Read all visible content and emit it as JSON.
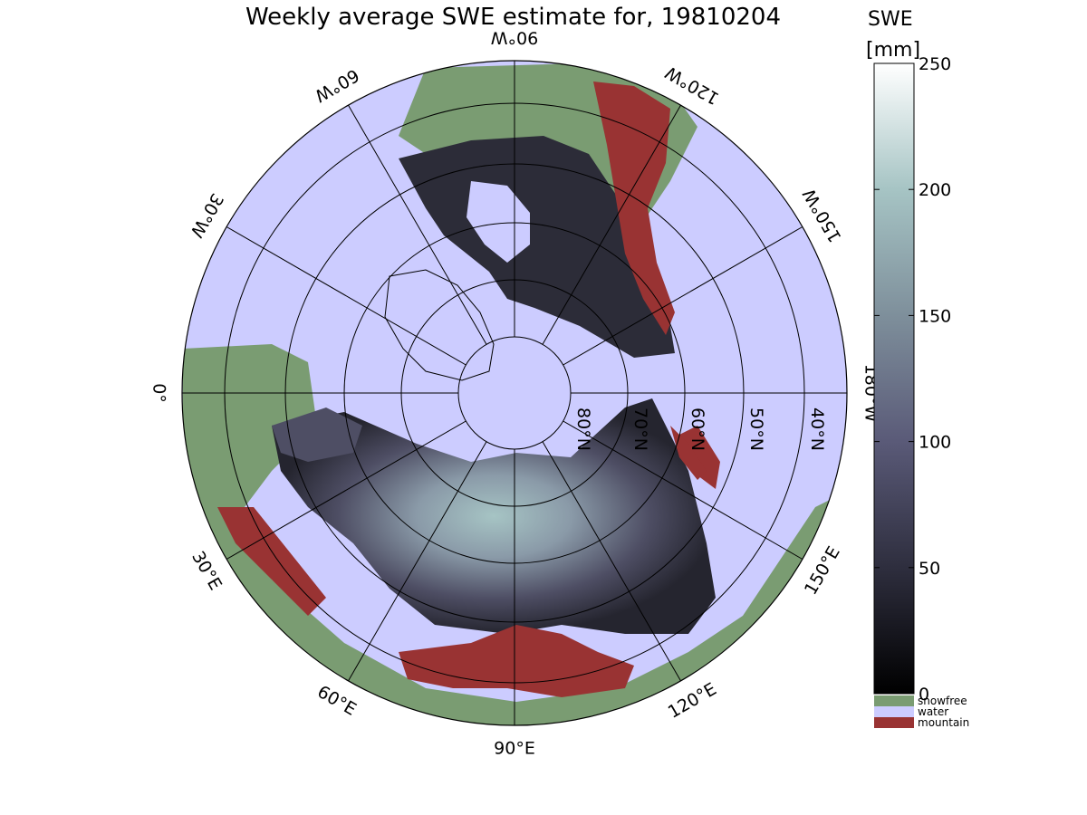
{
  "title": "Weekly average SWE estimate for, 19810204",
  "map": {
    "projection": "north polar stereographic",
    "longitude_labels": [
      {
        "text": "90°W",
        "lon": -90
      },
      {
        "text": "120°W",
        "lon": -120
      },
      {
        "text": "60°W",
        "lon": -60
      },
      {
        "text": "150°W",
        "lon": -150
      },
      {
        "text": "30°W",
        "lon": -30
      },
      {
        "text": "180°W",
        "lon": 180
      },
      {
        "text": "0°",
        "lon": 0
      },
      {
        "text": "150°E",
        "lon": 150
      },
      {
        "text": "30°E",
        "lon": 30
      },
      {
        "text": "120°E",
        "lon": 120
      },
      {
        "text": "60°E",
        "lon": 60
      },
      {
        "text": "90°E",
        "lon": 90
      }
    ],
    "latitude_labels": [
      "80°N",
      "70°N",
      "60°N",
      "50°N",
      "40°N"
    ],
    "category_colors": {
      "snowfree": "#7a9c72",
      "water": "#ccccff",
      "mountain": "#993333"
    }
  },
  "colorbar": {
    "title_line1": "SWE",
    "title_line2": "[mm]",
    "ticks": [
      "0",
      "50",
      "100",
      "150",
      "200",
      "250"
    ],
    "range": [
      0,
      250
    ],
    "colormap": "bone",
    "categories": [
      {
        "label": "snowfree",
        "color": "#7a9c72"
      },
      {
        "label": "water",
        "color": "#ccccff"
      },
      {
        "label": "mountain",
        "color": "#993333"
      }
    ]
  }
}
